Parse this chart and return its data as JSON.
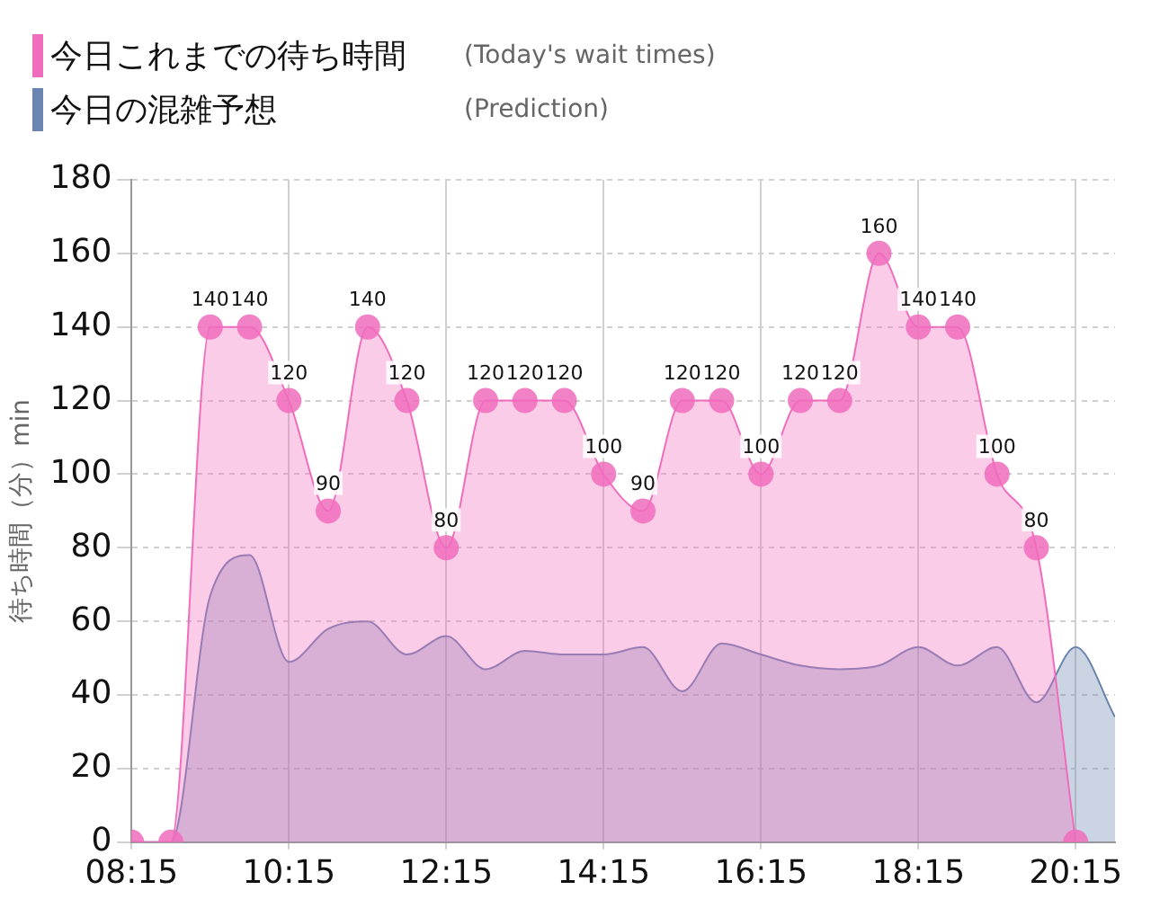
{
  "chart_data": {
    "type": "area",
    "ylabel": "待ち時間（分）min",
    "x": [
      8.25,
      8.75,
      9.25,
      9.75,
      10.25,
      10.75,
      11.25,
      11.75,
      12.25,
      12.75,
      13.25,
      13.75,
      14.25,
      14.75,
      15.25,
      15.75,
      16.25,
      16.75,
      17.25,
      17.75,
      18.25,
      18.75,
      19.25,
      19.75,
      20.25
    ],
    "series": [
      {
        "name": "今日これまでの待ち時間",
        "type": "area",
        "color": "#f06cbc",
        "marker": "circle",
        "values": [
          0,
          0,
          140,
          140,
          120,
          90,
          140,
          120,
          80,
          120,
          120,
          120,
          100,
          90,
          120,
          120,
          100,
          120,
          120,
          160,
          140,
          140,
          100,
          80,
          0
        ],
        "value_labels": [
          null,
          null,
          "140",
          "140",
          "120",
          "90",
          "140",
          "120",
          "80",
          "120",
          "120",
          "120",
          "100",
          "90",
          "120",
          "120",
          "100",
          "120",
          "120",
          "160",
          "140",
          "140",
          "100",
          "80",
          null
        ]
      },
      {
        "name": "今日の混雑予想",
        "type": "area",
        "color": "#6a85b0",
        "marker": "none",
        "x": [
          8.25,
          8.75,
          9.25,
          9.75,
          10.25,
          10.75,
          11.25,
          11.75,
          12.25,
          12.75,
          13.25,
          13.75,
          14.25,
          14.75,
          15.25,
          15.75,
          16.25,
          16.75,
          17.25,
          17.75,
          18.25,
          18.75,
          19.25,
          19.75,
          20.25,
          20.75
        ],
        "values": [
          0,
          0,
          67,
          78,
          49,
          58,
          60,
          51,
          56,
          47,
          52,
          51,
          51,
          53,
          41,
          54,
          51,
          48,
          47,
          48,
          53,
          48,
          53,
          38,
          53,
          34
        ]
      }
    ],
    "xlim": [
      8.25,
      20.75
    ],
    "xticks": [
      {
        "value": 8.25,
        "label": "08:15"
      },
      {
        "value": 10.25,
        "label": "10:15"
      },
      {
        "value": 12.25,
        "label": "12:15"
      },
      {
        "value": 14.25,
        "label": "14:15"
      },
      {
        "value": 16.25,
        "label": "16:15"
      },
      {
        "value": 18.25,
        "label": "18:15"
      },
      {
        "value": 20.25,
        "label": "20:15"
      }
    ],
    "ylim": [
      0,
      180
    ],
    "yticks": [
      0,
      20,
      40,
      60,
      80,
      100,
      120,
      140,
      160,
      180
    ],
    "grid": true,
    "legend": "top left",
    "annotations": [
      "(Today's wait times)",
      "(Prediction)"
    ]
  }
}
